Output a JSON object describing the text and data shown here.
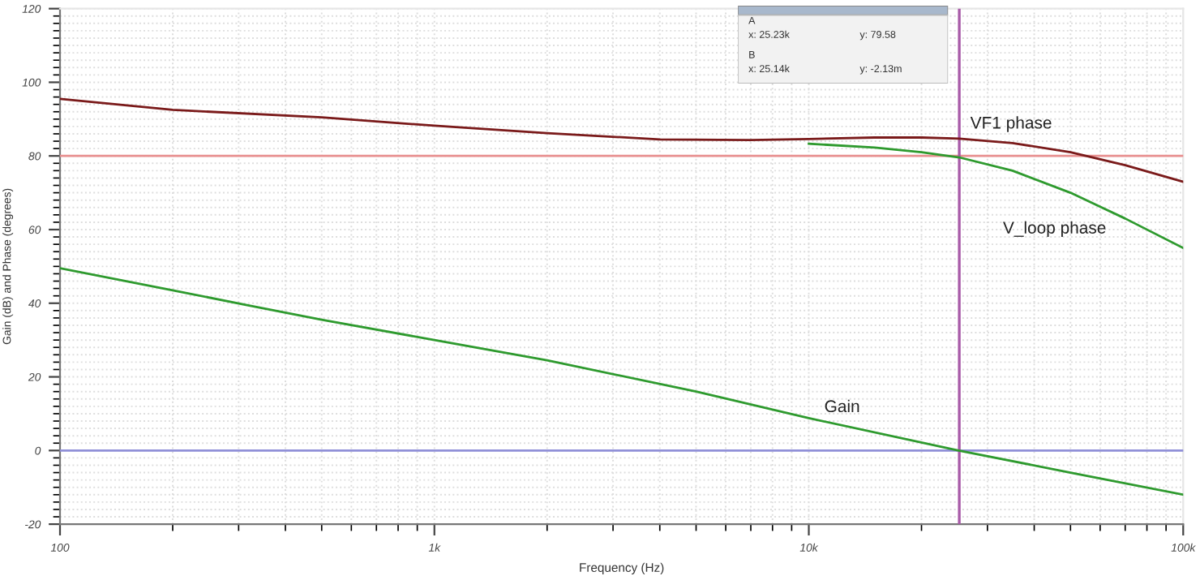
{
  "chart_data": {
    "type": "line",
    "xlabel": "Frequency (Hz)",
    "ylabel": "Gain (dB) and Phase (degrees)",
    "log": "x",
    "grid": true,
    "legend": false,
    "marker": "none",
    "line_style": "solid",
    "xlim": [
      100,
      100000
    ],
    "xticks": [
      {
        "value": 100,
        "label": "100"
      },
      {
        "value": 1000,
        "label": "1k"
      },
      {
        "value": 10000,
        "label": "10k"
      },
      {
        "value": 100000,
        "label": "100k"
      }
    ],
    "ylim": [
      -20,
      120
    ],
    "yticks": [
      -20,
      0,
      20,
      40,
      60,
      80,
      100,
      120
    ],
    "series": [
      {
        "name": "VF1 phase",
        "color": "#7a1a1a",
        "x": [
          100,
          200,
          500,
          1000,
          2000,
          4000,
          7000,
          10000,
          15000,
          20000,
          25230,
          35000,
          50000,
          70000,
          100000
        ],
        "values": [
          95.5,
          92.5,
          90.5,
          88.2,
          86.2,
          84.5,
          84.3,
          84.6,
          85,
          85,
          84.7,
          83.5,
          81,
          77.5,
          73
        ]
      },
      {
        "name": "V_loop phase",
        "color": "#2e9a2e",
        "x": [
          10000,
          15000,
          20000,
          25230,
          35000,
          50000,
          70000,
          100000
        ],
        "values": [
          83.3,
          82.3,
          81,
          79.6,
          76,
          70,
          63,
          55
        ]
      },
      {
        "name": "Gain",
        "color": "#2e9a2e",
        "x": [
          100,
          200,
          316,
          500,
          1000,
          2000,
          5000,
          10000,
          25140,
          50000,
          100000
        ],
        "values": [
          49.5,
          43.5,
          39.5,
          35.5,
          30,
          24.5,
          16,
          8.8,
          0,
          -6,
          -12
        ]
      }
    ],
    "ref_lines": [
      {
        "axis": "y",
        "value": 80,
        "color": "#e89090"
      },
      {
        "axis": "y",
        "value": 0,
        "color": "#9090d8"
      },
      {
        "axis": "x",
        "value": 25230,
        "color": "#a85aa8"
      }
    ],
    "annotations": [
      "A",
      "x: 25.23k",
      "y: 79.58",
      "B",
      "x: 25.14k",
      "y: -2.13m"
    ]
  }
}
